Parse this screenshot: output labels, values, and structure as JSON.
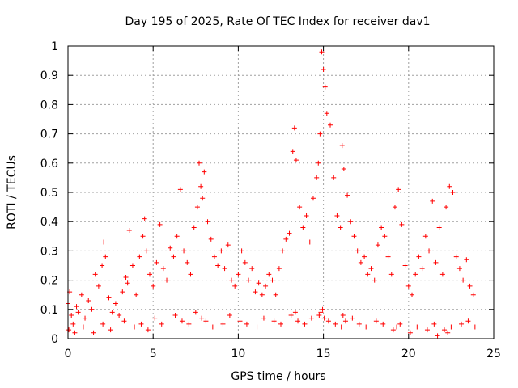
{
  "chart_data": {
    "type": "scatter",
    "title": "Day 195 of 2025, Rate Of TEC Index for receiver dav1",
    "xlabel": "GPS time / hours",
    "ylabel": "ROTI / TECUs",
    "xlim": [
      0,
      25
    ],
    "ylim": [
      0,
      1
    ],
    "x_ticks": [
      0,
      5,
      10,
      15,
      20,
      25
    ],
    "x_tick_labels": [
      "0",
      "5",
      "10",
      "15",
      "20",
      "25"
    ],
    "y_ticks": [
      0,
      0.1,
      0.2,
      0.3,
      0.4,
      0.5,
      0.6,
      0.7,
      0.8,
      0.9,
      1
    ],
    "y_tick_labels": [
      "0",
      "0.1",
      "0.2",
      "0.3",
      "0.4",
      "0.5",
      "0.6",
      "0.7",
      "0.8",
      "0.9",
      "1"
    ],
    "grid": true,
    "marker": "+",
    "color": "#ff0000",
    "series": [
      {
        "name": "dav1",
        "x": [
          0.0,
          0.1,
          0.2,
          0.3,
          0.5,
          0.6,
          0.8,
          1.0,
          1.2,
          1.4,
          1.6,
          1.8,
          2.0,
          2.1,
          2.2,
          2.4,
          2.6,
          2.8,
          3.0,
          3.2,
          3.4,
          3.5,
          3.6,
          3.8,
          4.0,
          4.2,
          4.4,
          4.5,
          4.6,
          4.8,
          5.0,
          5.2,
          5.4,
          5.6,
          5.8,
          6.0,
          6.2,
          6.4,
          6.6,
          6.8,
          7.0,
          7.2,
          7.4,
          7.6,
          7.7,
          7.8,
          7.9,
          8.0,
          8.2,
          8.4,
          8.6,
          8.8,
          9.0,
          9.2,
          9.4,
          9.6,
          9.8,
          10.0,
          10.2,
          10.4,
          10.6,
          10.8,
          11.0,
          11.2,
          11.4,
          11.6,
          11.8,
          12.0,
          12.2,
          12.4,
          12.6,
          12.8,
          13.0,
          13.2,
          13.3,
          13.4,
          13.6,
          13.8,
          14.0,
          14.2,
          14.4,
          14.6,
          14.7,
          14.8,
          14.9,
          15.0,
          15.1,
          15.2,
          15.4,
          15.6,
          15.8,
          16.0,
          16.1,
          16.2,
          16.4,
          16.6,
          16.8,
          17.0,
          17.2,
          17.4,
          17.6,
          17.8,
          18.0,
          18.2,
          18.4,
          18.6,
          18.8,
          19.0,
          19.2,
          19.4,
          19.6,
          19.8,
          20.0,
          20.2,
          20.4,
          20.6,
          20.8,
          21.0,
          21.2,
          21.4,
          21.6,
          21.8,
          22.0,
          22.2,
          22.4,
          22.6,
          22.8,
          23.0,
          23.2,
          23.4,
          23.6,
          23.8,
          0.05,
          0.4,
          0.9,
          1.5,
          2.05,
          2.5,
          3.3,
          3.9,
          4.3,
          4.7,
          5.1,
          5.5,
          6.3,
          6.7,
          7.1,
          7.5,
          7.85,
          8.1,
          8.5,
          9.1,
          9.5,
          10.1,
          10.5,
          11.1,
          11.5,
          12.1,
          12.5,
          13.1,
          13.35,
          13.5,
          13.9,
          14.3,
          14.75,
          14.85,
          14.95,
          15.05,
          15.3,
          15.7,
          16.05,
          16.15,
          16.3,
          16.7,
          17.1,
          17.5,
          18.1,
          18.5,
          19.1,
          19.3,
          19.5,
          20.1,
          20.5,
          21.1,
          21.5,
          21.7,
          22.1,
          22.3,
          22.5,
          23.1,
          23.5,
          23.9
        ],
        "y": [
          0.12,
          0.16,
          0.08,
          0.05,
          0.11,
          0.09,
          0.15,
          0.07,
          0.13,
          0.1,
          0.22,
          0.18,
          0.25,
          0.33,
          0.28,
          0.14,
          0.09,
          0.12,
          0.08,
          0.16,
          0.21,
          0.19,
          0.37,
          0.25,
          0.15,
          0.28,
          0.35,
          0.41,
          0.3,
          0.22,
          0.18,
          0.26,
          0.39,
          0.24,
          0.2,
          0.31,
          0.28,
          0.35,
          0.51,
          0.3,
          0.26,
          0.22,
          0.38,
          0.45,
          0.6,
          0.52,
          0.48,
          0.57,
          0.4,
          0.34,
          0.28,
          0.25,
          0.3,
          0.24,
          0.32,
          0.2,
          0.18,
          0.22,
          0.3,
          0.26,
          0.2,
          0.24,
          0.16,
          0.19,
          0.15,
          0.18,
          0.22,
          0.2,
          0.15,
          0.24,
          0.3,
          0.34,
          0.36,
          0.64,
          0.72,
          0.61,
          0.45,
          0.38,
          0.42,
          0.33,
          0.48,
          0.55,
          0.6,
          0.7,
          0.98,
          0.92,
          0.86,
          0.77,
          0.73,
          0.55,
          0.42,
          0.38,
          0.66,
          0.58,
          0.49,
          0.4,
          0.35,
          0.3,
          0.26,
          0.28,
          0.22,
          0.24,
          0.2,
          0.32,
          0.38,
          0.35,
          0.28,
          0.22,
          0.45,
          0.51,
          0.39,
          0.25,
          0.18,
          0.15,
          0.22,
          0.28,
          0.24,
          0.35,
          0.3,
          0.47,
          0.26,
          0.38,
          0.22,
          0.45,
          0.52,
          0.5,
          0.28,
          0.24,
          0.2,
          0.27,
          0.18,
          0.15,
          0.03,
          0.02,
          0.04,
          0.02,
          0.05,
          0.03,
          0.06,
          0.04,
          0.05,
          0.03,
          0.07,
          0.05,
          0.08,
          0.06,
          0.05,
          0.09,
          0.07,
          0.06,
          0.04,
          0.05,
          0.08,
          0.06,
          0.05,
          0.04,
          0.07,
          0.06,
          0.05,
          0.08,
          0.09,
          0.06,
          0.05,
          0.07,
          0.08,
          0.09,
          0.1,
          0.07,
          0.06,
          0.05,
          0.04,
          0.08,
          0.06,
          0.07,
          0.05,
          0.04,
          0.06,
          0.05,
          0.03,
          0.04,
          0.05,
          0.02,
          0.04,
          0.03,
          0.05,
          0.01,
          0.03,
          0.02,
          0.04,
          0.05,
          0.06,
          0.04
        ]
      }
    ]
  }
}
